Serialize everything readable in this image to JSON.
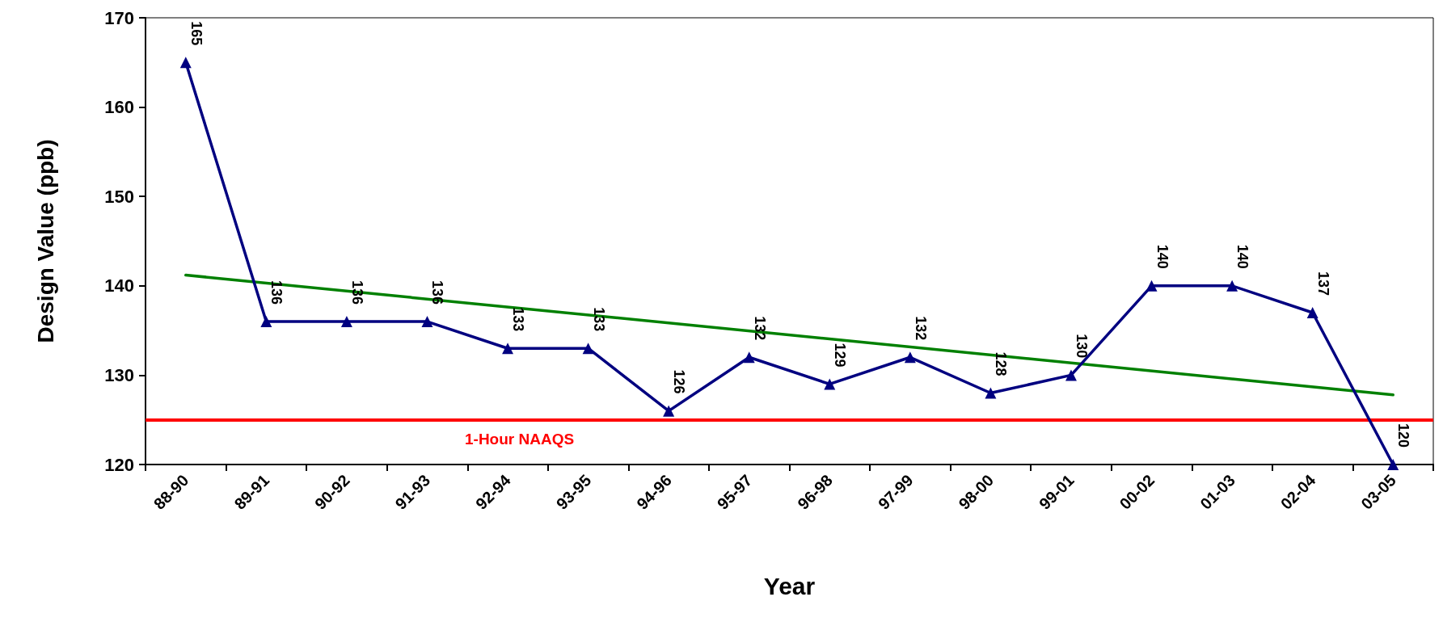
{
  "chart_data": {
    "type": "line",
    "xlabel": "Year",
    "ylabel": "Design Value (ppb)",
    "categories": [
      "88-90",
      "89-91",
      "90-92",
      "91-93",
      "92-94",
      "93-95",
      "94-96",
      "95-97",
      "96-98",
      "97-99",
      "98-00",
      "99-01",
      "00-02",
      "01-03",
      "02-04",
      "03-05"
    ],
    "series": [
      {
        "color": "#000080",
        "values": [
          165,
          136,
          136,
          136,
          133,
          133,
          126,
          132,
          129,
          132,
          128,
          130,
          140,
          140,
          137,
          120
        ],
        "marker": "triangle",
        "value_labels": [
          "165",
          "136",
          "136",
          "136",
          "133",
          "133",
          "126",
          "132",
          "129",
          "132",
          "128",
          "130",
          "140",
          "140",
          "137",
          "120"
        ]
      },
      {
        "type": "line",
        "color": "#008000",
        "x": [
          "88-90",
          "03-05"
        ],
        "values": [
          141.2,
          127.8
        ],
        "marker": "none"
      }
    ],
    "ylim": [
      120,
      170
    ],
    "yticks": [
      120,
      130,
      140,
      150,
      160,
      170
    ],
    "ref_lines": [
      {
        "axis": "y",
        "value": 125,
        "label": "1-Hour NAAQS",
        "color": "#ff0000"
      }
    ],
    "grid": false,
    "line_style": "solid"
  }
}
